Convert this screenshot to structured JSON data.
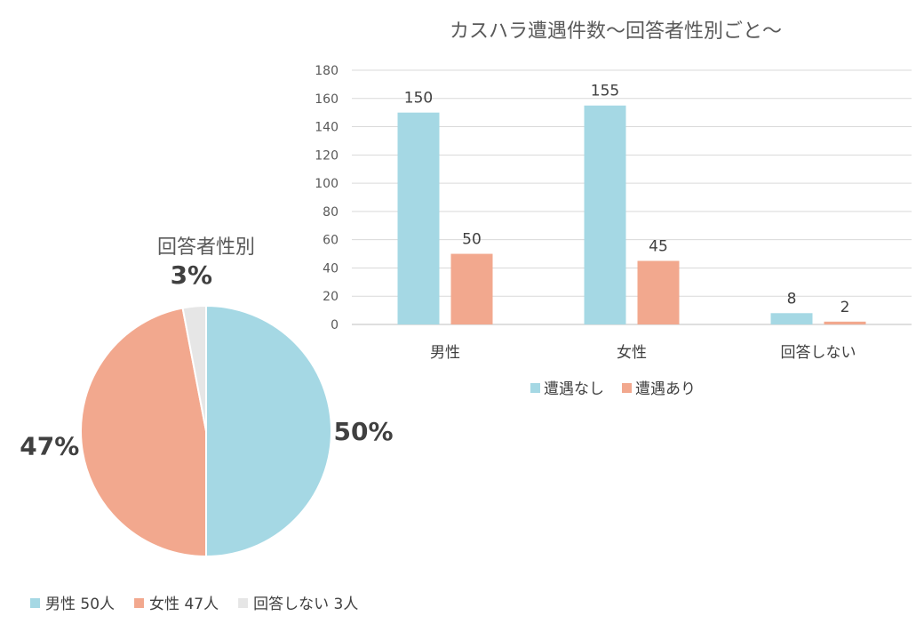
{
  "chart_data": [
    {
      "type": "bar",
      "title": "カスハラ遭遇件数～回答者性別ごと～",
      "categories": [
        "男性",
        "女性",
        "回答しない"
      ],
      "series": [
        {
          "name": "遭遇なし",
          "values": [
            150,
            155,
            8
          ],
          "color": "#A5D8E4"
        },
        {
          "name": "遭遇あり",
          "values": [
            50,
            45,
            2
          ],
          "color": "#F2A88E"
        }
      ],
      "ylim": [
        0,
        180
      ],
      "yticks": [
        0,
        20,
        40,
        60,
        80,
        100,
        120,
        140,
        160,
        180
      ],
      "grid": true,
      "legend": "bottom"
    },
    {
      "type": "pie",
      "title": "回答者性別",
      "slices": [
        {
          "label": "男性 50人",
          "value": 50,
          "pct_label": "50%",
          "color": "#A5D8E4"
        },
        {
          "label": "女性 47人",
          "value": 47,
          "pct_label": "47%",
          "color": "#F2A88E"
        },
        {
          "label": "回答しない 3人",
          "value": 3,
          "pct_label": "3%",
          "color": "#E6E6E6"
        }
      ],
      "legend": "bottom"
    }
  ]
}
